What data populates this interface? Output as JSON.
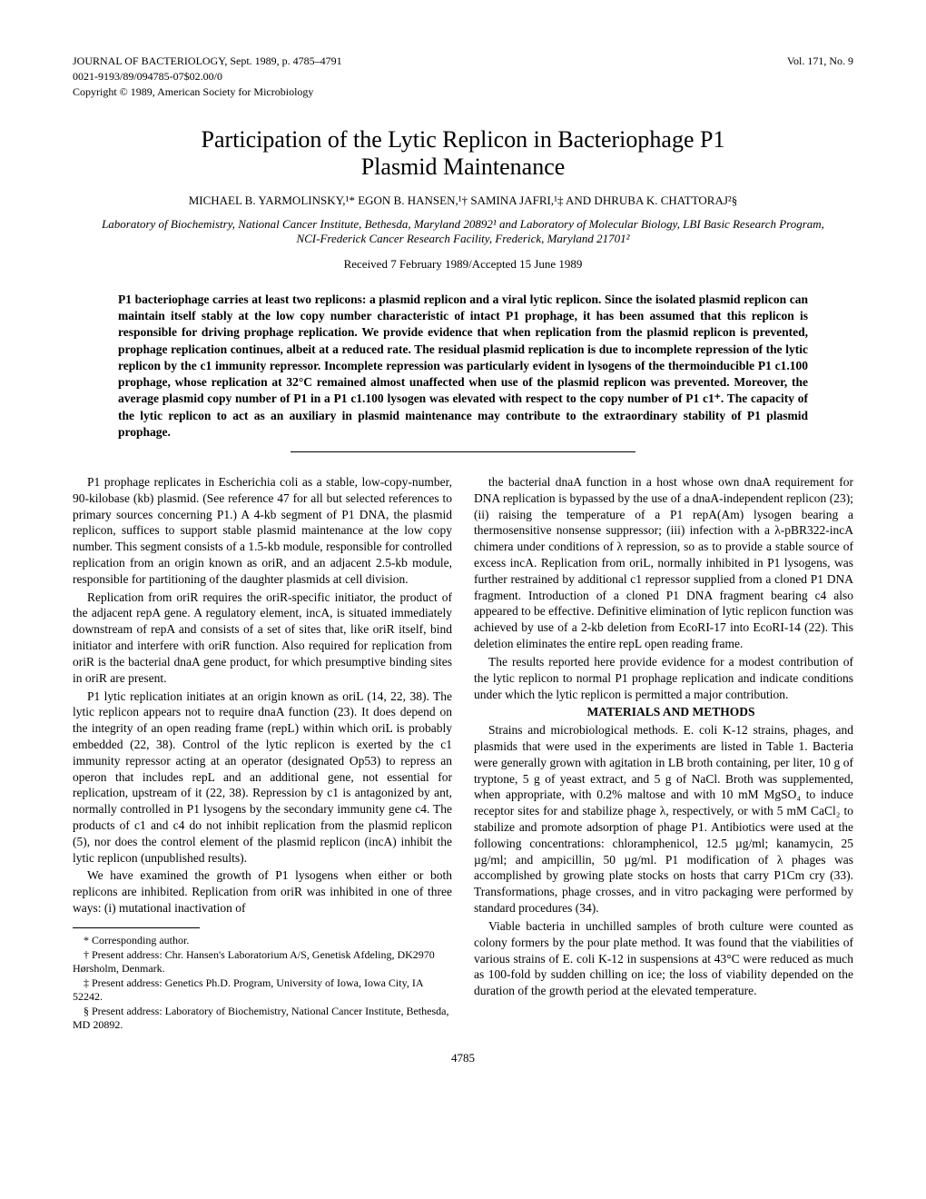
{
  "header": {
    "journal_line": "JOURNAL OF BACTERIOLOGY, Sept. 1989, p. 4785–4791",
    "issn_line": "0021-9193/89/094785-07$02.00/0",
    "copyright_line": "Copyright © 1989, American Society for Microbiology",
    "vol_issue": "Vol. 171, No. 9"
  },
  "title_line1": "Participation of the Lytic Replicon in Bacteriophage P1",
  "title_line2": "Plasmid Maintenance",
  "authors": "MICHAEL B. YARMOLINSKY,¹* EGON B. HANSEN,¹† SAMINA JAFRI,¹‡ AND DHRUBA K. CHATTORAJ²§",
  "affiliation": "Laboratory of Biochemistry, National Cancer Institute, Bethesda, Maryland 20892¹ and Laboratory of Molecular Biology, LBI Basic Research Program, NCI-Frederick Cancer Research Facility, Frederick, Maryland 21701²",
  "received": "Received 7 February 1989/Accepted 15 June 1989",
  "abstract": "P1 bacteriophage carries at least two replicons: a plasmid replicon and a viral lytic replicon. Since the isolated plasmid replicon can maintain itself stably at the low copy number characteristic of intact P1 prophage, it has been assumed that this replicon is responsible for driving prophage replication. We provide evidence that when replication from the plasmid replicon is prevented, prophage replication continues, albeit at a reduced rate. The residual plasmid replication is due to incomplete repression of the lytic replicon by the c1 immunity repressor. Incomplete repression was particularly evident in lysogens of the thermoinducible P1 c1.100 prophage, whose replication at 32°C remained almost unaffected when use of the plasmid replicon was prevented. Moreover, the average plasmid copy number of P1 in a P1 c1.100 lysogen was elevated with respect to the copy number of P1 c1⁺. The capacity of the lytic replicon to act as an auxiliary in plasmid maintenance may contribute to the extraordinary stability of P1 plasmid prophage.",
  "body": {
    "p1": "P1 prophage replicates in Escherichia coli as a stable, low-copy-number, 90-kilobase (kb) plasmid. (See reference 47 for all but selected references to primary sources concerning P1.) A 4-kb segment of P1 DNA, the plasmid replicon, suffices to support stable plasmid maintenance at the low copy number. This segment consists of a 1.5-kb module, responsible for controlled replication from an origin known as oriR, and an adjacent 2.5-kb module, responsible for partitioning of the daughter plasmids at cell division.",
    "p2": "Replication from oriR requires the oriR-specific initiator, the product of the adjacent repA gene. A regulatory element, incA, is situated immediately downstream of repA and consists of a set of sites that, like oriR itself, bind initiator and interfere with oriR function. Also required for replication from oriR is the bacterial dnaA gene product, for which presumptive binding sites in oriR are present.",
    "p3": "P1 lytic replication initiates at an origin known as oriL (14, 22, 38). The lytic replicon appears not to require dnaA function (23). It does depend on the integrity of an open reading frame (repL) within which oriL is probably embedded (22, 38). Control of the lytic replicon is exerted by the c1 immunity repressor acting at an operator (designated Op53) to repress an operon that includes repL and an additional gene, not essential for replication, upstream of it (22, 38). Repression by c1 is antagonized by ant, normally controlled in P1 lysogens by the secondary immunity gene c4. The products of c1 and c4 do not inhibit replication from the plasmid replicon (5), nor does the control element of the plasmid replicon (incA) inhibit the lytic replicon (unpublished results).",
    "p4": "We have examined the growth of P1 lysogens when either or both replicons are inhibited. Replication from oriR was inhibited in one of three ways: (i) mutational inactivation of",
    "p5": "the bacterial dnaA function in a host whose own dnaA requirement for DNA replication is bypassed by the use of a dnaA-independent replicon (23); (ii) raising the temperature of a P1 repA(Am) lysogen bearing a thermosensitive nonsense suppressor; (iii) infection with a λ-pBR322-incA chimera under conditions of λ repression, so as to provide a stable source of excess incA. Replication from oriL, normally inhibited in P1 lysogens, was further restrained by additional c1 repressor supplied from a cloned P1 DNA fragment. Introduction of a cloned P1 DNA fragment bearing c4 also appeared to be effective. Definitive elimination of lytic replicon function was achieved by use of a 2-kb deletion from EcoRI-17 into EcoRI-14 (22). This deletion eliminates the entire repL open reading frame.",
    "p6": "The results reported here provide evidence for a modest contribution of the lytic replicon to normal P1 prophage replication and indicate conditions under which the lytic replicon is permitted a major contribution.",
    "mm_head": "MATERIALS AND METHODS",
    "p7": "Strains and microbiological methods. E. coli K-12 strains, phages, and plasmids that were used in the experiments are listed in Table 1. Bacteria were generally grown with agitation in LB broth containing, per liter, 10 g of tryptone, 5 g of yeast extract, and 5 g of NaCl. Broth was supplemented, when appropriate, with 0.2% maltose and with 10 mM MgSO₄ to induce receptor sites for and stabilize phage λ, respectively, or with 5 mM CaCl₂ to stabilize and promote adsorption of phage P1. Antibiotics were used at the following concentrations: chloramphenicol, 12.5 µg/ml; kanamycin, 25 µg/ml; and ampicillin, 50 µg/ml. P1 modification of λ phages was accomplished by growing plate stocks on hosts that carry P1Cm cry (33). Transformations, phage crosses, and in vitro packaging were performed by standard procedures (34).",
    "p8": "Viable bacteria in unchilled samples of broth culture were counted as colony formers by the pour plate method. It was found that the viabilities of various strains of E. coli K-12 in suspensions at 43°C were reduced as much as 100-fold by sudden chilling on ice; the loss of viability depended on the duration of the growth period at the elevated temperature."
  },
  "footnotes": {
    "f1": "* Corresponding author.",
    "f2": "† Present address: Chr. Hansen's Laboratorium A/S, Genetisk Afdeling, DK2970 Hørsholm, Denmark.",
    "f3": "‡ Present address: Genetics Ph.D. Program, University of Iowa, Iowa City, IA 52242.",
    "f4": "§ Present address: Laboratory of Biochemistry, National Cancer Institute, Bethesda, MD 20892."
  },
  "page_number": "4785"
}
